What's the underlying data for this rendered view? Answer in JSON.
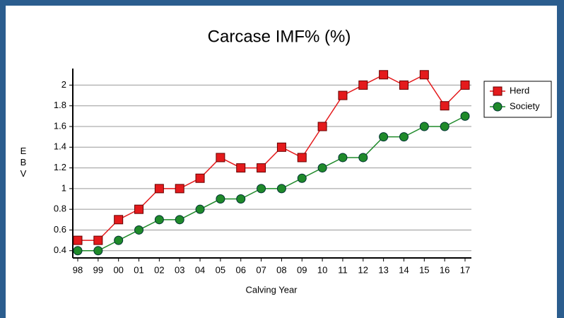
{
  "chart_data": {
    "type": "line",
    "title": "Carcase IMF% (%)",
    "x_label": "Calving Year",
    "y_label": "EBV",
    "categories": [
      "98",
      "99",
      "00",
      "01",
      "02",
      "03",
      "04",
      "05",
      "06",
      "07",
      "08",
      "09",
      "10",
      "11",
      "12",
      "13",
      "14",
      "15",
      "16",
      "17"
    ],
    "series": [
      {
        "name": "Herd",
        "color": "#e41a1c",
        "marker": "square",
        "values": [
          0.5,
          0.5,
          0.7,
          0.8,
          1.0,
          1.0,
          1.1,
          1.3,
          1.2,
          1.2,
          1.4,
          1.3,
          1.6,
          1.9,
          2.0,
          2.1,
          2.0,
          2.1,
          1.8,
          2.0
        ]
      },
      {
        "name": "Society",
        "color": "#1f8a2a",
        "marker": "circle",
        "values": [
          0.4,
          0.4,
          0.5,
          0.6,
          0.7,
          0.7,
          0.8,
          0.9,
          0.9,
          1.0,
          1.0,
          1.1,
          1.2,
          1.3,
          1.3,
          1.5,
          1.5,
          1.6,
          1.6,
          1.7
        ]
      }
    ],
    "ylim": [
      0.33,
      2.16
    ],
    "yticks": [
      0.4,
      0.6,
      0.8,
      1,
      1.2,
      1.4,
      1.6,
      1.8,
      2
    ],
    "grid": true,
    "legend": "right"
  }
}
